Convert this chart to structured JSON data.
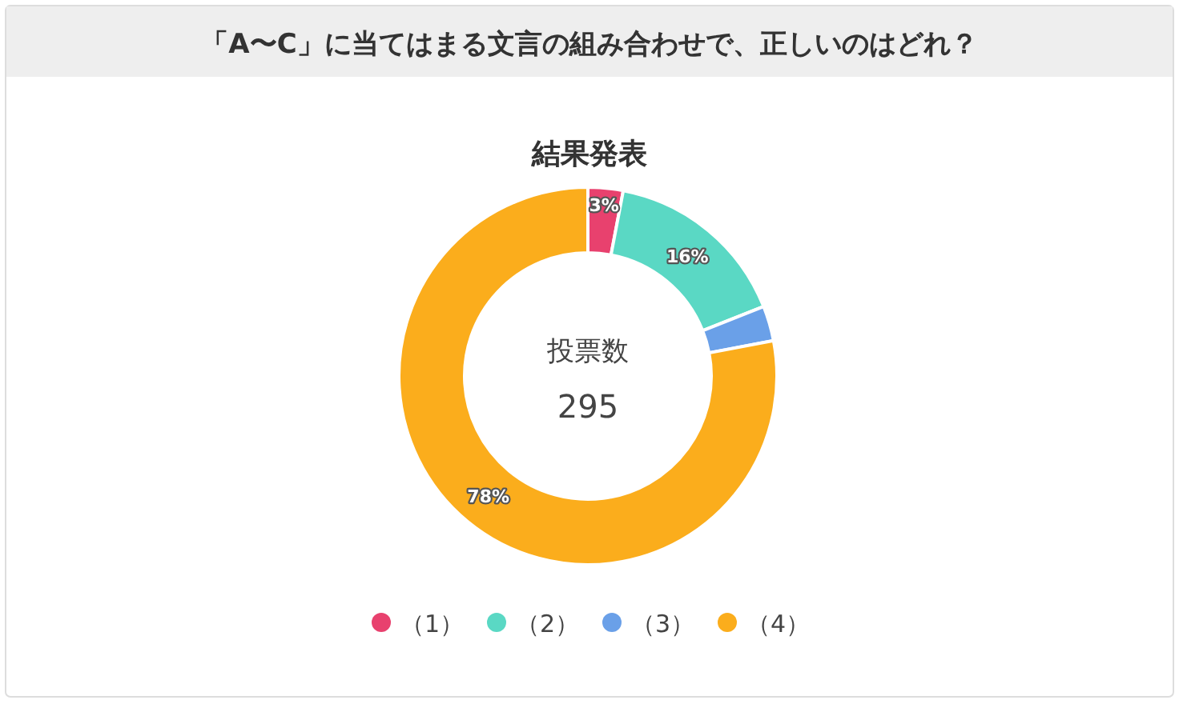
{
  "chart_data": {
    "type": "donut",
    "title": "「A〜C」に当てはまる文言の組み合わせで、正しいのはどれ？",
    "subtitle": "結果発表",
    "categories": [
      "（1）",
      "（2）",
      "（3）",
      "（4）"
    ],
    "values": [
      3,
      16,
      3,
      78
    ],
    "colors": [
      "#e8416e",
      "#5ad8c4",
      "#6aa0e8",
      "#fbad1c"
    ],
    "value_labels": [
      "3%",
      "16%",
      null,
      "78%"
    ],
    "annotations": [
      "投票数",
      "295"
    ],
    "legend": "bottom"
  }
}
